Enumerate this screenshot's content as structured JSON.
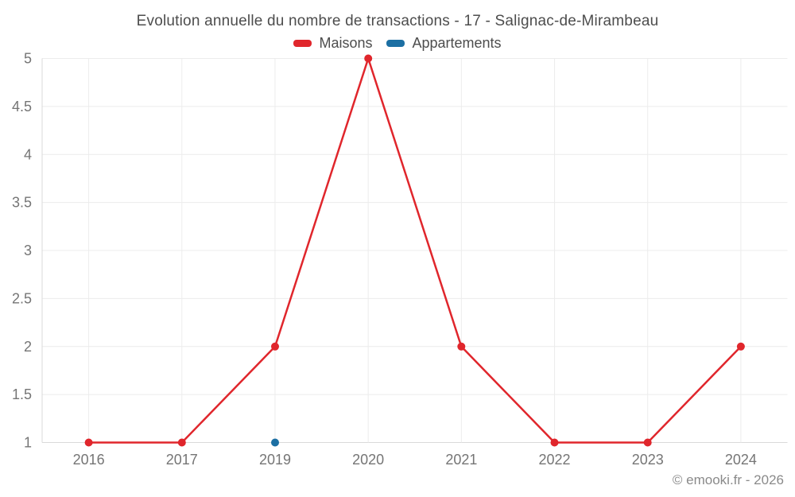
{
  "title": "Evolution annuelle du nombre de transactions - 17 - Salignac-de-Mirambeau",
  "copyright": "© emooki.fr - 2026",
  "legend": {
    "items": [
      {
        "label": "Maisons",
        "color": "#e0262c"
      },
      {
        "label": "Appartements",
        "color": "#1c6fa3"
      }
    ]
  },
  "colors": {
    "background": "#ffffff",
    "grid": "#ececec",
    "axis": "#d9d9d9",
    "tick_label": "#757575",
    "title_text": "#4d4d4d",
    "copyright_text": "#8a8a8a"
  },
  "chart_data": {
    "type": "line",
    "title": "Evolution annuelle du nombre de transactions - 17 - Salignac-de-Mirambeau",
    "categories": [
      "2016",
      "2017",
      "2019",
      "2020",
      "2021",
      "2022",
      "2023",
      "2024"
    ],
    "series": [
      {
        "name": "Maisons",
        "color": "#e0262c",
        "values": [
          1,
          1,
          2,
          5,
          2,
          1,
          1,
          2
        ]
      },
      {
        "name": "Appartements",
        "color": "#1c6fa3",
        "values": [
          null,
          null,
          1,
          null,
          null,
          null,
          null,
          null
        ]
      }
    ],
    "xlabel": "",
    "ylabel": "",
    "ylim": [
      1,
      5
    ],
    "ytick_step": 0.5,
    "grid": true,
    "legend_position": "top",
    "marker_radius": 5,
    "line_width": 2.5
  }
}
